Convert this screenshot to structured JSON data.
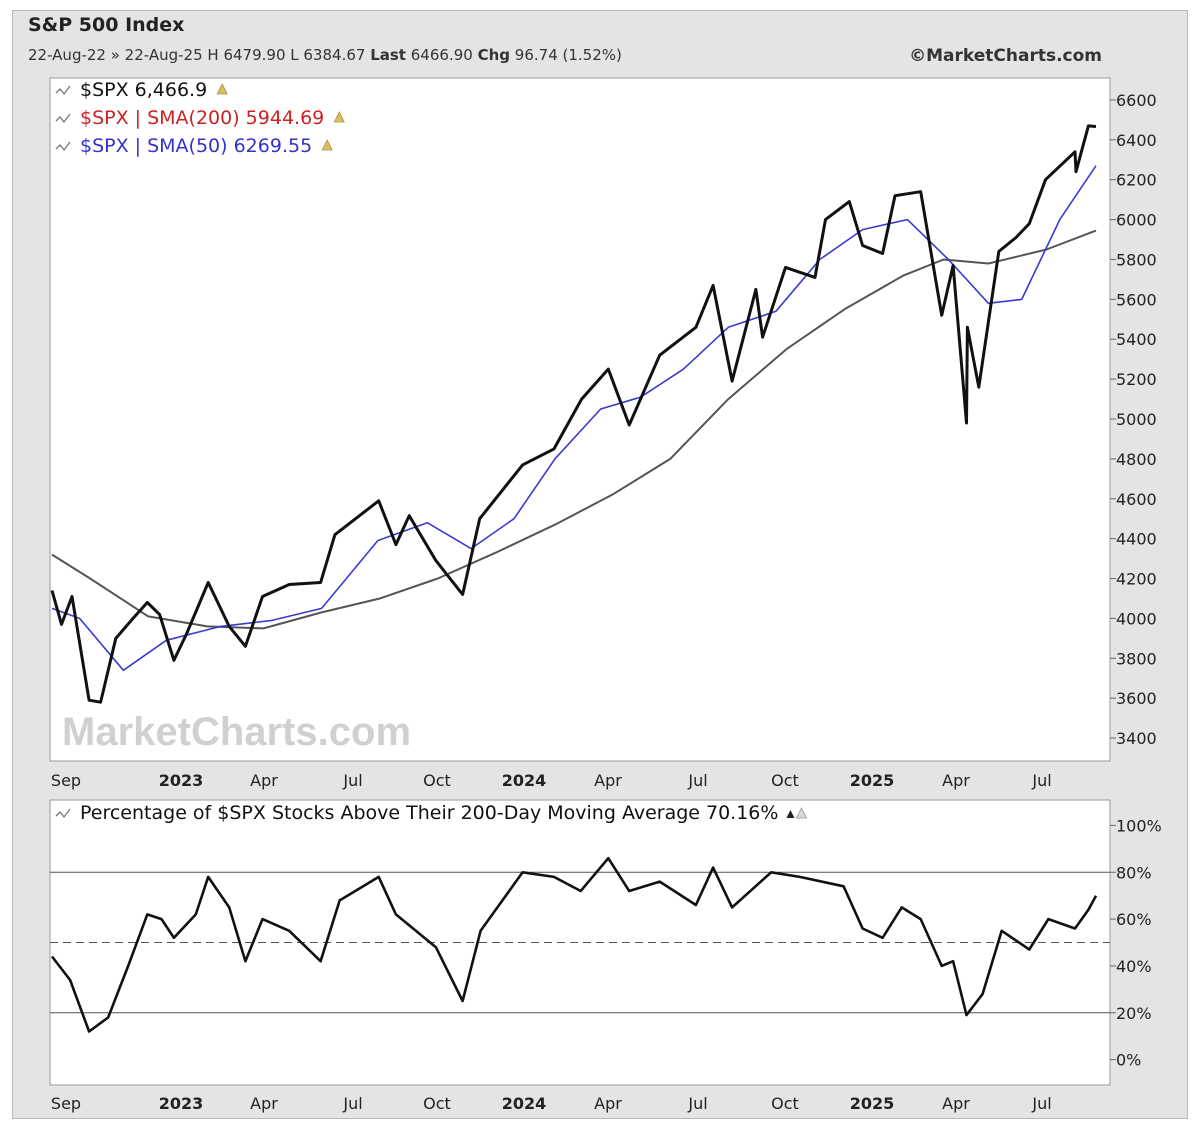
{
  "header": {
    "title": "S&P 500 Index",
    "date_range": "22-Aug-22 » 22-Aug-25",
    "ohlc": "H 6479.90 L 6384.67",
    "last_label": "Last",
    "last_value": "6466.90",
    "chg_label": "Chg",
    "chg_value": "96.74 (1.52%)",
    "brand": "©MarketCharts.com",
    "watermark": "MarketCharts.com"
  },
  "colors": {
    "price": "#111111",
    "sma200": "#555555",
    "sma50": "#3a3ad0",
    "legend_red": "#cc2222",
    "legend_blue": "#3333cc",
    "plot_bg": "#ffffff",
    "frame_bg": "#e4e4e4"
  },
  "chart_data": [
    {
      "type": "line",
      "panel": "price",
      "legend": [
        {
          "text": "$SPX 6,466.9",
          "color": "#111111"
        },
        {
          "text": "$SPX | SMA(200) 5944.69",
          "color": "#cc2222"
        },
        {
          "text": "$SPX | SMA(50) 6269.55",
          "color": "#3333cc"
        }
      ],
      "y_ticks": [
        "3400",
        "3600",
        "3800",
        "4000",
        "4200",
        "4400",
        "4600",
        "4800",
        "5000",
        "5200",
        "5400",
        "5600",
        "5800",
        "6000",
        "6200",
        "6400",
        "6600"
      ],
      "ylim": [
        3300,
        6700
      ],
      "x_labels": [
        {
          "text": "Sep",
          "bold": false
        },
        {
          "text": "2023",
          "bold": true
        },
        {
          "text": "Apr",
          "bold": false
        },
        {
          "text": "Jul",
          "bold": false
        },
        {
          "text": "Oct",
          "bold": false
        },
        {
          "text": "2024",
          "bold": true
        },
        {
          "text": "Apr",
          "bold": false
        },
        {
          "text": "Jul",
          "bold": false
        },
        {
          "text": "Oct",
          "bold": false
        },
        {
          "text": "2025",
          "bold": true
        },
        {
          "text": "Apr",
          "bold": false
        },
        {
          "text": "Jul",
          "bold": false
        }
      ],
      "series": [
        {
          "name": "$SPX",
          "color": "#111111",
          "points": [
            [
              "2022-08-22",
              4140
            ],
            [
              "2022-09-01",
              3970
            ],
            [
              "2022-09-12",
              4110
            ],
            [
              "2022-09-30",
              3590
            ],
            [
              "2022-10-12",
              3580
            ],
            [
              "2022-10-28",
              3900
            ],
            [
              "2022-11-15",
              4000
            ],
            [
              "2022-11-30",
              4080
            ],
            [
              "2022-12-13",
              4020
            ],
            [
              "2022-12-28",
              3790
            ],
            [
              "2023-01-10",
              3920
            ],
            [
              "2023-02-02",
              4180
            ],
            [
              "2023-02-24",
              3960
            ],
            [
              "2023-03-13",
              3860
            ],
            [
              "2023-03-31",
              4110
            ],
            [
              "2023-04-28",
              4170
            ],
            [
              "2023-05-31",
              4180
            ],
            [
              "2023-06-15",
              4420
            ],
            [
              "2023-07-31",
              4590
            ],
            [
              "2023-08-18",
              4370
            ],
            [
              "2023-09-01",
              4515
            ],
            [
              "2023-09-29",
              4290
            ],
            [
              "2023-10-27",
              4120
            ],
            [
              "2023-11-14",
              4500
            ],
            [
              "2023-12-29",
              4770
            ],
            [
              "2024-01-31",
              4850
            ],
            [
              "2024-02-29",
              5100
            ],
            [
              "2024-03-28",
              5250
            ],
            [
              "2024-04-19",
              4970
            ],
            [
              "2024-05-21",
              5320
            ],
            [
              "2024-06-28",
              5460
            ],
            [
              "2024-07-16",
              5670
            ],
            [
              "2024-08-05",
              5190
            ],
            [
              "2024-08-30",
              5650
            ],
            [
              "2024-09-06",
              5410
            ],
            [
              "2024-09-30",
              5760
            ],
            [
              "2024-10-31",
              5710
            ],
            [
              "2024-11-11",
              6000
            ],
            [
              "2024-12-06",
              6090
            ],
            [
              "2024-12-20",
              5870
            ],
            [
              "2025-01-10",
              5830
            ],
            [
              "2025-01-23",
              6120
            ],
            [
              "2025-02-19",
              6140
            ],
            [
              "2025-03-13",
              5520
            ],
            [
              "2025-03-25",
              5770
            ],
            [
              "2025-04-08",
              4980
            ],
            [
              "2025-04-09",
              5460
            ],
            [
              "2025-04-21",
              5160
            ],
            [
              "2025-05-12",
              5840
            ],
            [
              "2025-05-30",
              5910
            ],
            [
              "2025-06-13",
              5980
            ],
            [
              "2025-06-30",
              6200
            ],
            [
              "2025-07-31",
              6340
            ],
            [
              "2025-08-01",
              6240
            ],
            [
              "2025-08-14",
              6470
            ],
            [
              "2025-08-22",
              6467
            ]
          ]
        },
        {
          "name": "SMA(200)",
          "color": "#555555",
          "points": [
            [
              "2022-08-22",
              4320
            ],
            [
              "2022-10-01",
              4200
            ],
            [
              "2022-12-01",
              4010
            ],
            [
              "2023-02-01",
              3960
            ],
            [
              "2023-04-01",
              3950
            ],
            [
              "2023-06-01",
              4030
            ],
            [
              "2023-08-01",
              4100
            ],
            [
              "2023-10-01",
              4200
            ],
            [
              "2023-12-01",
              4330
            ],
            [
              "2024-02-01",
              4470
            ],
            [
              "2024-04-01",
              4620
            ],
            [
              "2024-06-01",
              4800
            ],
            [
              "2024-08-01",
              5100
            ],
            [
              "2024-10-01",
              5350
            ],
            [
              "2024-12-01",
              5550
            ],
            [
              "2025-02-01",
              5720
            ],
            [
              "2025-03-15",
              5800
            ],
            [
              "2025-05-01",
              5780
            ],
            [
              "2025-07-01",
              5850
            ],
            [
              "2025-08-22",
              5945
            ]
          ]
        },
        {
          "name": "SMA(50)",
          "color": "#3a3ad0",
          "points": [
            [
              "2022-08-22",
              4050
            ],
            [
              "2022-09-20",
              4000
            ],
            [
              "2022-11-05",
              3740
            ],
            [
              "2022-12-20",
              3890
            ],
            [
              "2023-02-15",
              3960
            ],
            [
              "2023-04-10",
              3990
            ],
            [
              "2023-06-01",
              4050
            ],
            [
              "2023-07-30",
              4390
            ],
            [
              "2023-09-20",
              4480
            ],
            [
              "2023-11-05",
              4350
            ],
            [
              "2023-12-20",
              4500
            ],
            [
              "2024-02-01",
              4800
            ],
            [
              "2024-03-20",
              5050
            ],
            [
              "2024-05-01",
              5110
            ],
            [
              "2024-06-15",
              5250
            ],
            [
              "2024-08-01",
              5460
            ],
            [
              "2024-09-20",
              5540
            ],
            [
              "2024-11-05",
              5800
            ],
            [
              "2024-12-20",
              5950
            ],
            [
              "2025-02-05",
              6000
            ],
            [
              "2025-03-20",
              5800
            ],
            [
              "2025-05-01",
              5580
            ],
            [
              "2025-06-05",
              5600
            ],
            [
              "2025-07-15",
              6000
            ],
            [
              "2025-08-22",
              6270
            ]
          ]
        }
      ]
    },
    {
      "type": "line",
      "panel": "breadth",
      "legend": [
        {
          "text": "Percentage of $SPX Stocks Above Their 200-Day Moving Average 70.16%",
          "color": "#111111"
        }
      ],
      "y_ticks": [
        "0%",
        "20%",
        "40%",
        "60%",
        "80%",
        "100%"
      ],
      "ylim": [
        -10,
        110
      ],
      "reference_lines": [
        20,
        50,
        80
      ],
      "x_labels": [
        {
          "text": "Sep",
          "bold": false
        },
        {
          "text": "2023",
          "bold": true
        },
        {
          "text": "Apr",
          "bold": false
        },
        {
          "text": "Jul",
          "bold": false
        },
        {
          "text": "Oct",
          "bold": false
        },
        {
          "text": "2024",
          "bold": true
        },
        {
          "text": "Apr",
          "bold": false
        },
        {
          "text": "Jul",
          "bold": false
        },
        {
          "text": "Oct",
          "bold": false
        },
        {
          "text": "2025",
          "bold": true
        },
        {
          "text": "Apr",
          "bold": false
        },
        {
          "text": "Jul",
          "bold": false
        }
      ],
      "series": [
        {
          "name": "Percentage of $SPX Stocks Above Their 200-Day Moving Average",
          "color": "#111111",
          "points": [
            [
              "2022-08-22",
              44
            ],
            [
              "2022-09-10",
              34
            ],
            [
              "2022-09-30",
              12
            ],
            [
              "2022-10-20",
              18
            ],
            [
              "2022-11-10",
              40
            ],
            [
              "2022-11-30",
              62
            ],
            [
              "2022-12-15",
              60
            ],
            [
              "2022-12-28",
              52
            ],
            [
              "2023-01-20",
              62
            ],
            [
              "2023-02-02",
              78
            ],
            [
              "2023-02-24",
              65
            ],
            [
              "2023-03-13",
              42
            ],
            [
              "2023-03-31",
              60
            ],
            [
              "2023-04-28",
              55
            ],
            [
              "2023-05-31",
              42
            ],
            [
              "2023-06-20",
              68
            ],
            [
              "2023-07-31",
              78
            ],
            [
              "2023-08-18",
              62
            ],
            [
              "2023-09-29",
              48
            ],
            [
              "2023-10-27",
              25
            ],
            [
              "2023-11-15",
              55
            ],
            [
              "2023-12-29",
              80
            ],
            [
              "2024-01-31",
              78
            ],
            [
              "2024-02-28",
              72
            ],
            [
              "2024-03-28",
              86
            ],
            [
              "2024-04-19",
              72
            ],
            [
              "2024-05-21",
              76
            ],
            [
              "2024-06-28",
              66
            ],
            [
              "2024-07-16",
              82
            ],
            [
              "2024-08-05",
              65
            ],
            [
              "2024-09-15",
              80
            ],
            [
              "2024-10-15",
              78
            ],
            [
              "2024-11-30",
              74
            ],
            [
              "2024-12-20",
              56
            ],
            [
              "2025-01-10",
              52
            ],
            [
              "2025-01-30",
              65
            ],
            [
              "2025-02-19",
              60
            ],
            [
              "2025-03-13",
              40
            ],
            [
              "2025-03-25",
              42
            ],
            [
              "2025-04-08",
              19
            ],
            [
              "2025-04-25",
              28
            ],
            [
              "2025-05-15",
              55
            ],
            [
              "2025-06-13",
              47
            ],
            [
              "2025-07-03",
              60
            ],
            [
              "2025-07-31",
              56
            ],
            [
              "2025-08-14",
              64
            ],
            [
              "2025-08-22",
              70
            ]
          ]
        }
      ]
    }
  ]
}
